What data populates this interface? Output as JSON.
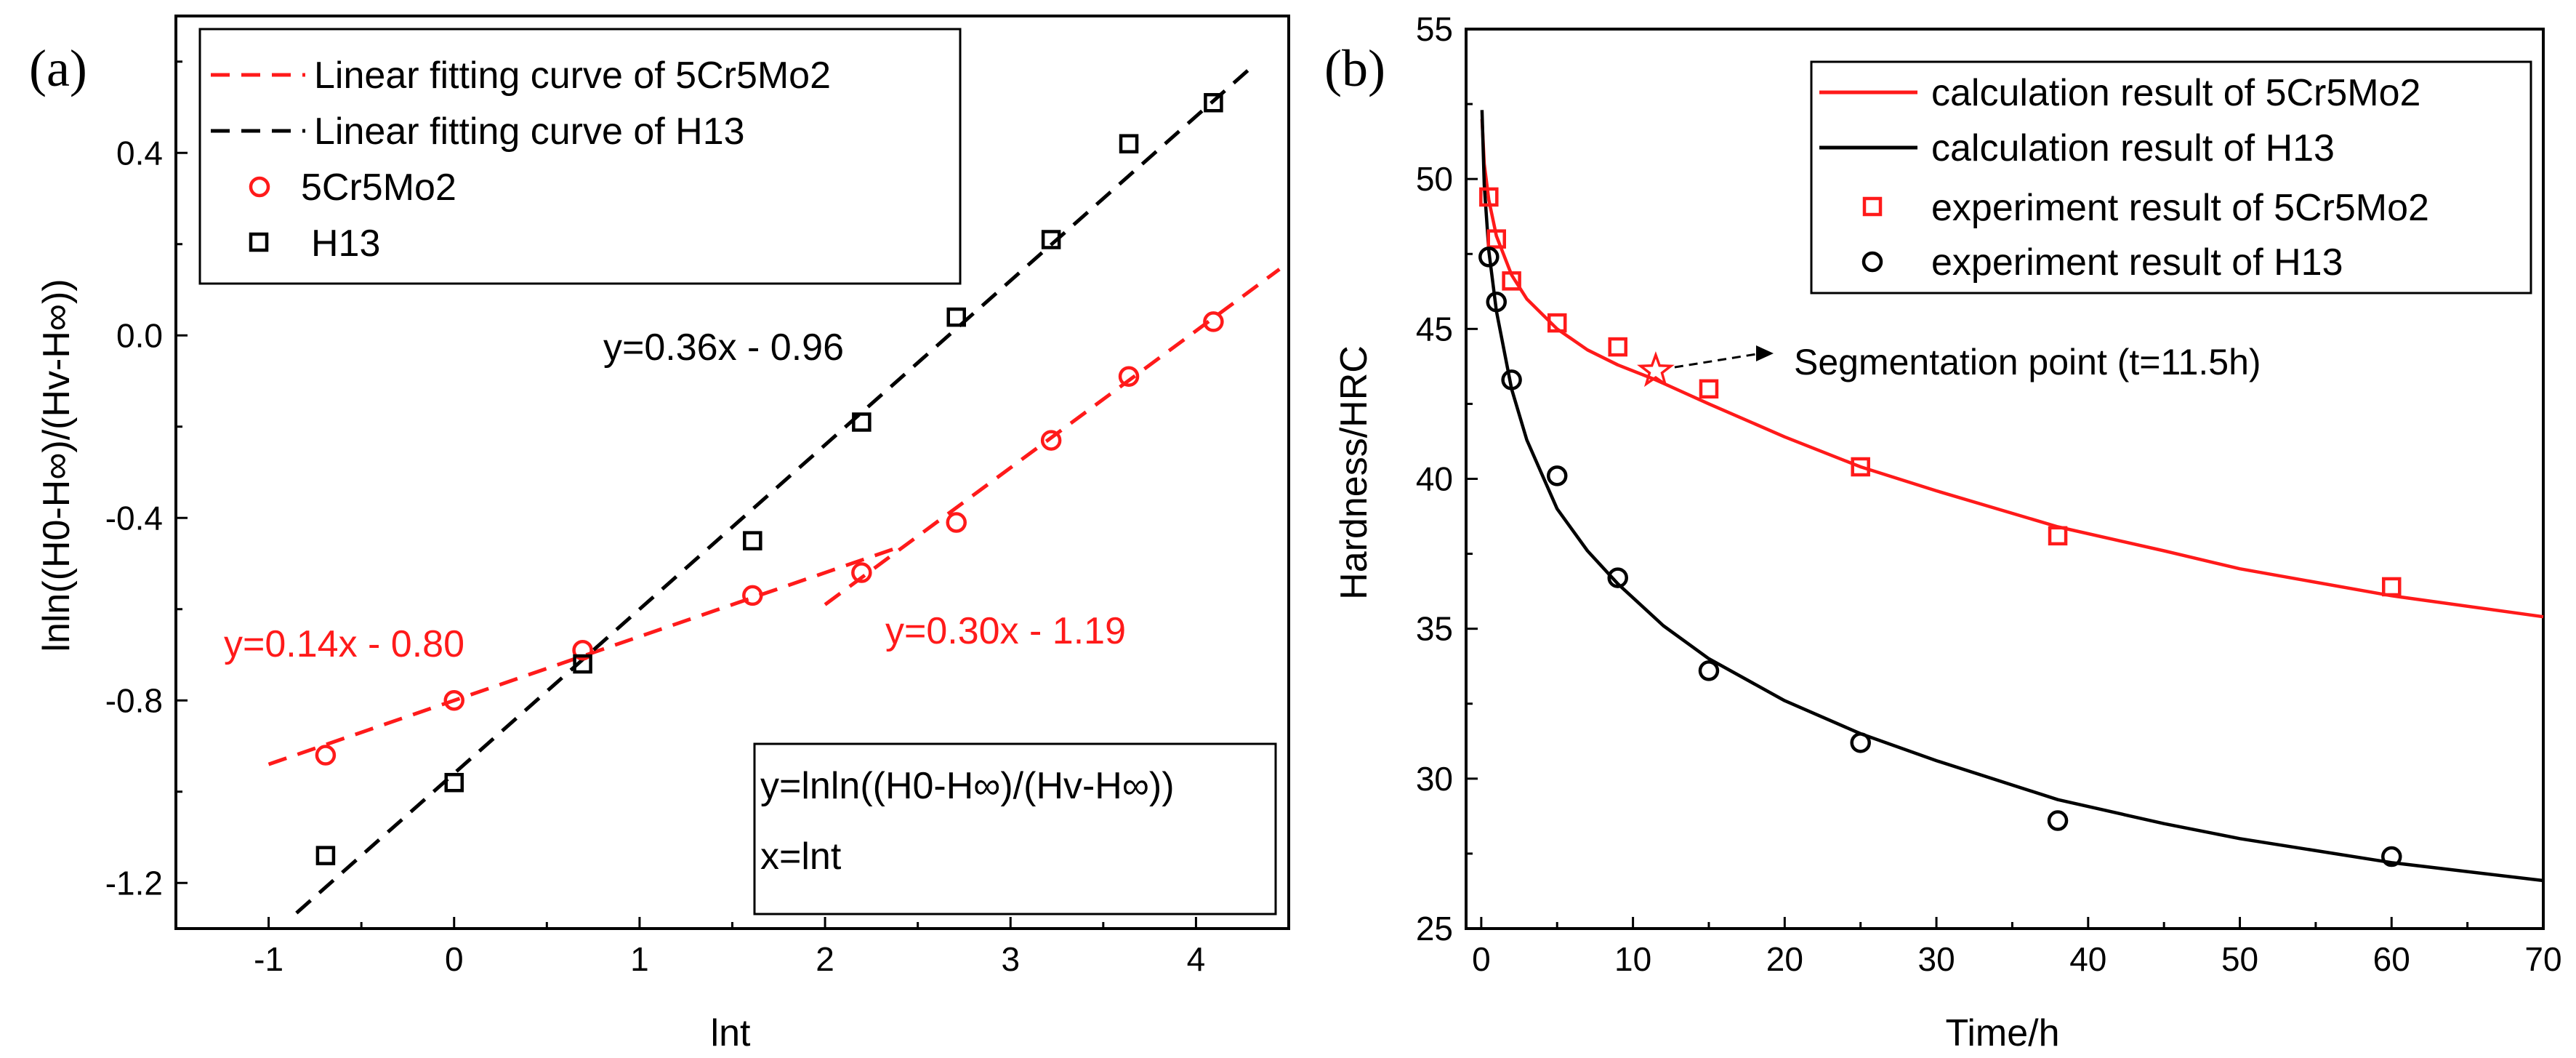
{
  "chart_data": [
    {
      "panel": "(a)",
      "type": "scatter",
      "xlabel": "lnt",
      "ylabel": "lnln((H0-H∞)/(Hv-H∞))",
      "xlim": [
        -1.5,
        4.5
      ],
      "ylim": [
        -1.3,
        0.7
      ],
      "xticks": [
        -1,
        0,
        1,
        2,
        3,
        4
      ],
      "yticks": [
        -1.2,
        -0.8,
        -0.4,
        0.0,
        0.4
      ],
      "ytick_labels": [
        "-1.2",
        "-0.8",
        "-0.4",
        "0.0",
        "0.4"
      ],
      "legend": {
        "placement": "top-left",
        "entries": [
          {
            "label": "Linear fitting curve of 5Cr5Mo2",
            "style": "dashed-line",
            "color": "#ff1a1a"
          },
          {
            "label": "Linear fitting curve of H13",
            "style": "dashed-line",
            "color": "#000000"
          },
          {
            "label": "5Cr5Mo2",
            "style": "circle",
            "color": "#ff1a1a"
          },
          {
            "label": "H13",
            "style": "square",
            "color": "#000000"
          }
        ]
      },
      "series": [
        {
          "name": "5Cr5Mo2",
          "marker": "circle",
          "color": "#ff1a1a",
          "x": [
            -0.693,
            0.0,
            0.693,
            1.609,
            2.197,
            2.708,
            3.219,
            3.638,
            4.094
          ],
          "y": [
            -0.92,
            -0.8,
            -0.69,
            -0.57,
            -0.52,
            -0.41,
            -0.23,
            -0.09,
            0.03
          ]
        },
        {
          "name": "H13",
          "marker": "square",
          "color": "#000000",
          "x": [
            -0.693,
            0.0,
            0.693,
            1.609,
            2.197,
            2.708,
            3.219,
            3.638,
            4.094
          ],
          "y": [
            -1.14,
            -0.98,
            -0.72,
            -0.45,
            -0.19,
            0.04,
            0.21,
            0.42,
            0.51
          ]
        }
      ],
      "fits": [
        {
          "name": "5Cr5Mo2 segment 1",
          "color": "#ff1a1a",
          "slope": 0.14,
          "intercept": -0.8,
          "x_range": [
            -1.0,
            2.4
          ]
        },
        {
          "name": "5Cr5Mo2 segment 2",
          "color": "#ff1a1a",
          "slope": 0.3,
          "intercept": -1.19,
          "x_range": [
            2.0,
            4.45
          ]
        },
        {
          "name": "H13",
          "color": "#000000",
          "slope": 0.36,
          "intercept": -0.96,
          "x_range": [
            -0.85,
            4.3
          ]
        }
      ],
      "annotations": [
        {
          "text": "y=0.36x - 0.96",
          "color": "#000000"
        },
        {
          "text": "y=0.14x - 0.80",
          "color": "#ff1a1a"
        },
        {
          "text": "y=0.30x - 1.19",
          "color": "#ff1a1a"
        }
      ],
      "formula_box": {
        "line1": "y=lnln((H0-H∞)/(Hv-H∞))",
        "line2": "x=lnt"
      }
    },
    {
      "panel": "(b)",
      "type": "line",
      "xlabel": "Time/h",
      "ylabel": "Hardness/HRC",
      "xlim": [
        -1,
        70
      ],
      "ylim": [
        25,
        55
      ],
      "xticks": [
        0,
        10,
        20,
        30,
        40,
        50,
        60,
        70
      ],
      "yticks": [
        25,
        30,
        35,
        40,
        45,
        50,
        55
      ],
      "legend": {
        "placement": "top-right",
        "entries": [
          {
            "label": "calculation result of 5Cr5Mo2",
            "style": "solid-line",
            "color": "#ff1a1a"
          },
          {
            "label": "calculation result of H13",
            "style": "solid-line",
            "color": "#000000"
          },
          {
            "label": "experiment result of 5Cr5Mo2",
            "style": "square",
            "color": "#ff1a1a"
          },
          {
            "label": "experiment result of H13",
            "style": "circle",
            "color": "#000000"
          }
        ]
      },
      "series": [
        {
          "name": "experiment result of 5Cr5Mo2",
          "marker": "square",
          "color": "#ff1a1a",
          "x": [
            0.5,
            1,
            2,
            5,
            9,
            15,
            25,
            38,
            60
          ],
          "y": [
            49.4,
            48.0,
            46.6,
            45.2,
            44.4,
            43.0,
            40.4,
            38.1,
            36.4
          ]
        },
        {
          "name": "experiment result of H13",
          "marker": "circle",
          "color": "#000000",
          "x": [
            0.5,
            1,
            2,
            5,
            9,
            15,
            25,
            38,
            60
          ],
          "y": [
            47.4,
            45.9,
            43.3,
            40.1,
            36.7,
            33.6,
            31.2,
            28.6,
            27.4
          ]
        }
      ],
      "curves": [
        {
          "name": "calculation result of 5Cr5Mo2",
          "color": "#ff1a1a",
          "x": [
            0.05,
            0.2,
            0.5,
            1,
            2,
            3,
            5,
            7,
            9,
            11.5,
            15,
            20,
            25,
            30,
            38,
            45,
            50,
            60,
            70
          ],
          "y": [
            52.0,
            50.5,
            49.3,
            48.1,
            46.8,
            46.0,
            45.0,
            44.3,
            43.8,
            43.3,
            42.5,
            41.4,
            40.4,
            39.6,
            38.4,
            37.6,
            37.0,
            36.1,
            35.4
          ]
        },
        {
          "name": "calculation result of H13",
          "color": "#000000",
          "x": [
            0.05,
            0.2,
            0.5,
            1,
            2,
            3,
            5,
            7,
            9,
            12,
            15,
            20,
            25,
            30,
            38,
            45,
            50,
            60,
            70
          ],
          "y": [
            52.3,
            49.8,
            47.6,
            45.6,
            43.0,
            41.3,
            39.0,
            37.6,
            36.5,
            35.1,
            34.0,
            32.6,
            31.5,
            30.6,
            29.3,
            28.5,
            28.0,
            27.2,
            26.6
          ]
        }
      ],
      "segmentation_point": {
        "x": 11.5,
        "y": 43.6,
        "label": "Segmentation point (t=11.5h)"
      }
    }
  ]
}
